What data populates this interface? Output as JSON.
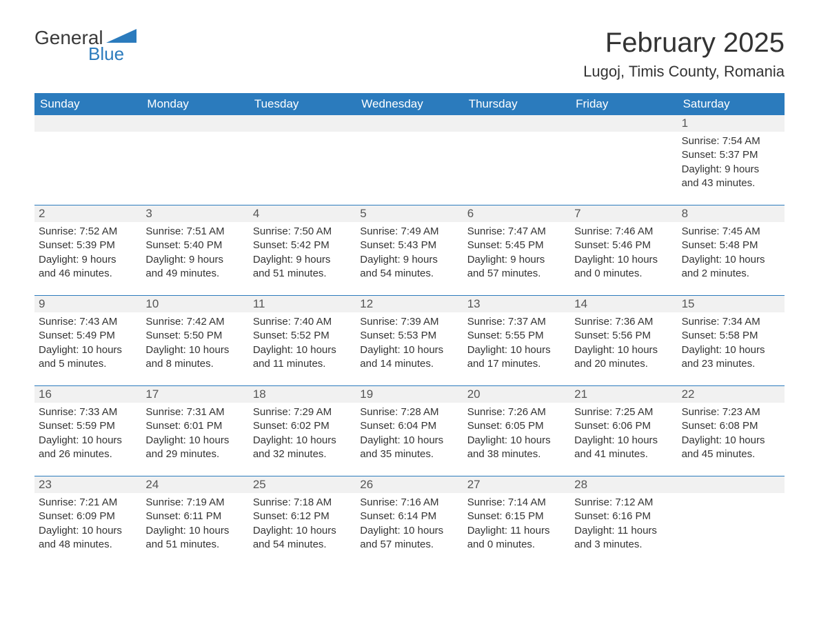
{
  "logo": {
    "text1": "General",
    "text2": "Blue",
    "shape_color": "#2b7bbd"
  },
  "header": {
    "month_title": "February 2025",
    "location": "Lugoj, Timis County, Romania"
  },
  "colors": {
    "header_bar": "#2b7bbd",
    "header_text": "#ffffff",
    "daynum_bg": "#f1f1f1",
    "body_text": "#333333",
    "row_border": "#2b7bbd"
  },
  "weekdays": [
    "Sunday",
    "Monday",
    "Tuesday",
    "Wednesday",
    "Thursday",
    "Friday",
    "Saturday"
  ],
  "weeks": [
    [
      null,
      null,
      null,
      null,
      null,
      null,
      {
        "n": "1",
        "sunrise": "Sunrise: 7:54 AM",
        "sunset": "Sunset: 5:37 PM",
        "day1": "Daylight: 9 hours",
        "day2": "and 43 minutes."
      }
    ],
    [
      {
        "n": "2",
        "sunrise": "Sunrise: 7:52 AM",
        "sunset": "Sunset: 5:39 PM",
        "day1": "Daylight: 9 hours",
        "day2": "and 46 minutes."
      },
      {
        "n": "3",
        "sunrise": "Sunrise: 7:51 AM",
        "sunset": "Sunset: 5:40 PM",
        "day1": "Daylight: 9 hours",
        "day2": "and 49 minutes."
      },
      {
        "n": "4",
        "sunrise": "Sunrise: 7:50 AM",
        "sunset": "Sunset: 5:42 PM",
        "day1": "Daylight: 9 hours",
        "day2": "and 51 minutes."
      },
      {
        "n": "5",
        "sunrise": "Sunrise: 7:49 AM",
        "sunset": "Sunset: 5:43 PM",
        "day1": "Daylight: 9 hours",
        "day2": "and 54 minutes."
      },
      {
        "n": "6",
        "sunrise": "Sunrise: 7:47 AM",
        "sunset": "Sunset: 5:45 PM",
        "day1": "Daylight: 9 hours",
        "day2": "and 57 minutes."
      },
      {
        "n": "7",
        "sunrise": "Sunrise: 7:46 AM",
        "sunset": "Sunset: 5:46 PM",
        "day1": "Daylight: 10 hours",
        "day2": "and 0 minutes."
      },
      {
        "n": "8",
        "sunrise": "Sunrise: 7:45 AM",
        "sunset": "Sunset: 5:48 PM",
        "day1": "Daylight: 10 hours",
        "day2": "and 2 minutes."
      }
    ],
    [
      {
        "n": "9",
        "sunrise": "Sunrise: 7:43 AM",
        "sunset": "Sunset: 5:49 PM",
        "day1": "Daylight: 10 hours",
        "day2": "and 5 minutes."
      },
      {
        "n": "10",
        "sunrise": "Sunrise: 7:42 AM",
        "sunset": "Sunset: 5:50 PM",
        "day1": "Daylight: 10 hours",
        "day2": "and 8 minutes."
      },
      {
        "n": "11",
        "sunrise": "Sunrise: 7:40 AM",
        "sunset": "Sunset: 5:52 PM",
        "day1": "Daylight: 10 hours",
        "day2": "and 11 minutes."
      },
      {
        "n": "12",
        "sunrise": "Sunrise: 7:39 AM",
        "sunset": "Sunset: 5:53 PM",
        "day1": "Daylight: 10 hours",
        "day2": "and 14 minutes."
      },
      {
        "n": "13",
        "sunrise": "Sunrise: 7:37 AM",
        "sunset": "Sunset: 5:55 PM",
        "day1": "Daylight: 10 hours",
        "day2": "and 17 minutes."
      },
      {
        "n": "14",
        "sunrise": "Sunrise: 7:36 AM",
        "sunset": "Sunset: 5:56 PM",
        "day1": "Daylight: 10 hours",
        "day2": "and 20 minutes."
      },
      {
        "n": "15",
        "sunrise": "Sunrise: 7:34 AM",
        "sunset": "Sunset: 5:58 PM",
        "day1": "Daylight: 10 hours",
        "day2": "and 23 minutes."
      }
    ],
    [
      {
        "n": "16",
        "sunrise": "Sunrise: 7:33 AM",
        "sunset": "Sunset: 5:59 PM",
        "day1": "Daylight: 10 hours",
        "day2": "and 26 minutes."
      },
      {
        "n": "17",
        "sunrise": "Sunrise: 7:31 AM",
        "sunset": "Sunset: 6:01 PM",
        "day1": "Daylight: 10 hours",
        "day2": "and 29 minutes."
      },
      {
        "n": "18",
        "sunrise": "Sunrise: 7:29 AM",
        "sunset": "Sunset: 6:02 PM",
        "day1": "Daylight: 10 hours",
        "day2": "and 32 minutes."
      },
      {
        "n": "19",
        "sunrise": "Sunrise: 7:28 AM",
        "sunset": "Sunset: 6:04 PM",
        "day1": "Daylight: 10 hours",
        "day2": "and 35 minutes."
      },
      {
        "n": "20",
        "sunrise": "Sunrise: 7:26 AM",
        "sunset": "Sunset: 6:05 PM",
        "day1": "Daylight: 10 hours",
        "day2": "and 38 minutes."
      },
      {
        "n": "21",
        "sunrise": "Sunrise: 7:25 AM",
        "sunset": "Sunset: 6:06 PM",
        "day1": "Daylight: 10 hours",
        "day2": "and 41 minutes."
      },
      {
        "n": "22",
        "sunrise": "Sunrise: 7:23 AM",
        "sunset": "Sunset: 6:08 PM",
        "day1": "Daylight: 10 hours",
        "day2": "and 45 minutes."
      }
    ],
    [
      {
        "n": "23",
        "sunrise": "Sunrise: 7:21 AM",
        "sunset": "Sunset: 6:09 PM",
        "day1": "Daylight: 10 hours",
        "day2": "and 48 minutes."
      },
      {
        "n": "24",
        "sunrise": "Sunrise: 7:19 AM",
        "sunset": "Sunset: 6:11 PM",
        "day1": "Daylight: 10 hours",
        "day2": "and 51 minutes."
      },
      {
        "n": "25",
        "sunrise": "Sunrise: 7:18 AM",
        "sunset": "Sunset: 6:12 PM",
        "day1": "Daylight: 10 hours",
        "day2": "and 54 minutes."
      },
      {
        "n": "26",
        "sunrise": "Sunrise: 7:16 AM",
        "sunset": "Sunset: 6:14 PM",
        "day1": "Daylight: 10 hours",
        "day2": "and 57 minutes."
      },
      {
        "n": "27",
        "sunrise": "Sunrise: 7:14 AM",
        "sunset": "Sunset: 6:15 PM",
        "day1": "Daylight: 11 hours",
        "day2": "and 0 minutes."
      },
      {
        "n": "28",
        "sunrise": "Sunrise: 7:12 AM",
        "sunset": "Sunset: 6:16 PM",
        "day1": "Daylight: 11 hours",
        "day2": "and 3 minutes."
      },
      null
    ]
  ]
}
